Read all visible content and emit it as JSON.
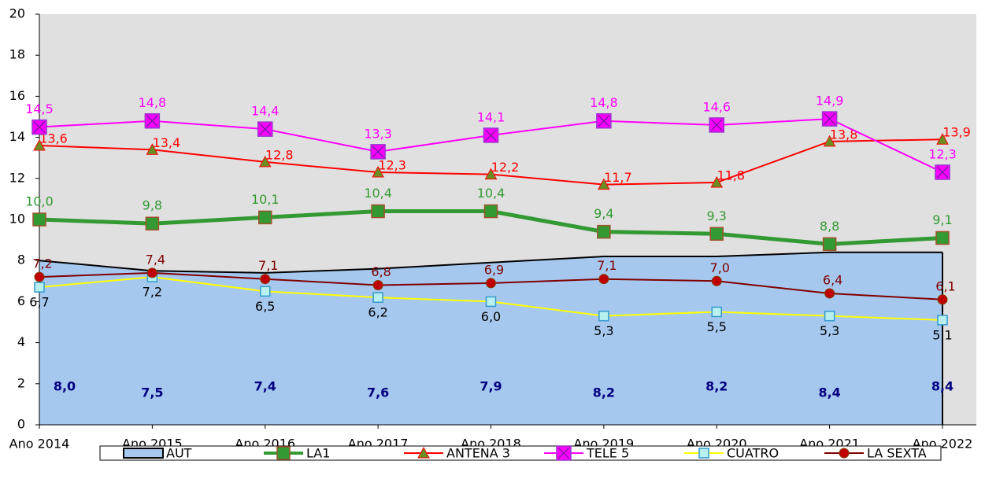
{
  "chart_data": {
    "type": "line",
    "categories": [
      "Ano 2014",
      "Ano 2015",
      "Ano 2016",
      "Ano 2017",
      "Ano 2018",
      "Ano 2019",
      "Ano 2020",
      "Ano 2021",
      "Ano 2022"
    ],
    "ylim": [
      0,
      20
    ],
    "yticks": [
      0,
      2,
      4,
      6,
      8,
      10,
      12,
      14,
      16,
      18,
      20
    ],
    "series": [
      {
        "name": "AUT",
        "type": "area",
        "color": "#a6c8ee",
        "label_color": "#000080",
        "values": [
          8.0,
          7.5,
          7.4,
          7.6,
          7.9,
          8.2,
          8.2,
          8.4,
          8.4
        ],
        "value_labels": [
          "8,0",
          "7,5",
          "7,4",
          "7,6",
          "7,9",
          "8,2",
          "8,2",
          "8,4",
          "8,4"
        ]
      },
      {
        "name": "LA1",
        "color": "#339933",
        "label_color": "#339933",
        "marker": "square",
        "values": [
          10.0,
          9.8,
          10.1,
          10.4,
          10.4,
          9.4,
          9.3,
          8.8,
          9.1
        ],
        "value_labels": [
          "10,0",
          "9,8",
          "10,1",
          "10,4",
          "10,4",
          "9,4",
          "9,3",
          "8,8",
          "9,1"
        ]
      },
      {
        "name": "ANTENA 3",
        "color": "#ff0000",
        "label_color": "#ff0000",
        "marker": "triangle",
        "values": [
          13.6,
          13.4,
          12.8,
          12.3,
          12.2,
          11.7,
          11.8,
          13.8,
          13.9
        ],
        "value_labels": [
          "13,6",
          "13,4",
          "12,8",
          "12,3",
          "12,2",
          "11,7",
          "11,8",
          "13,8",
          "13,9"
        ]
      },
      {
        "name": "TELE 5",
        "color": "#ff00ff",
        "label_color": "#ff00ff",
        "marker": "xsquare",
        "values": [
          14.5,
          14.8,
          14.4,
          13.3,
          14.1,
          14.8,
          14.6,
          14.9,
          12.3
        ],
        "value_labels": [
          "14,5",
          "14,8",
          "14,4",
          "13,3",
          "14,1",
          "14,8",
          "14,6",
          "14,9",
          "12,3"
        ]
      },
      {
        "name": "CUATRO",
        "color": "#ffff00",
        "label_color": "#000000",
        "marker": "lsquare",
        "values": [
          6.7,
          7.2,
          6.5,
          6.2,
          6.0,
          5.3,
          5.5,
          5.3,
          5.1
        ],
        "value_labels": [
          "6,7",
          "7,2",
          "6,5",
          "6,2",
          "6,0",
          "5,3",
          "5,5",
          "5,3",
          "5,1"
        ]
      },
      {
        "name": "LA SEXTA",
        "color": "#800000",
        "label_color": "#800000",
        "marker": "circle",
        "values": [
          7.2,
          7.4,
          7.1,
          6.8,
          6.9,
          7.1,
          7.0,
          6.4,
          6.1
        ],
        "value_labels": [
          "7,2",
          "7,4",
          "7,1",
          "6,8",
          "6,9",
          "7,1",
          "7,0",
          "6,4",
          "6,1"
        ]
      }
    ]
  }
}
